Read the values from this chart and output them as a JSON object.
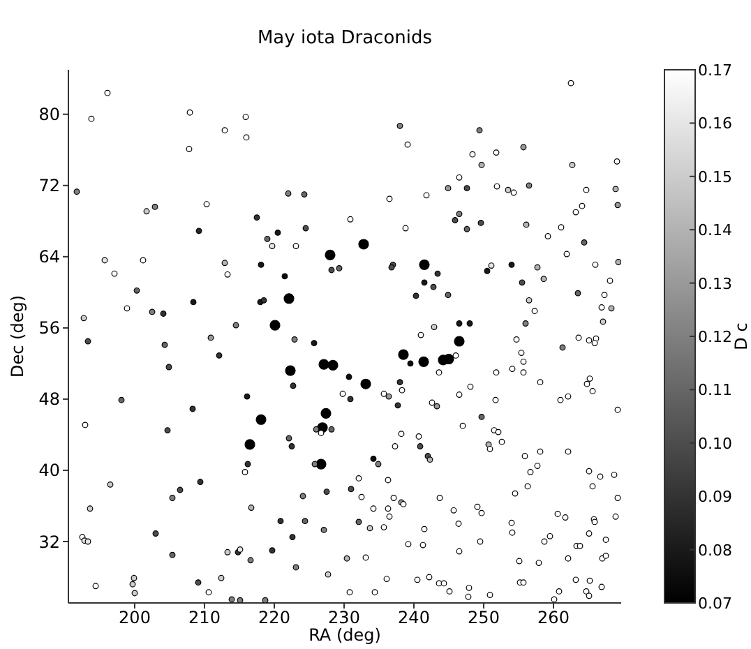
{
  "chart_data": {
    "type": "scatter",
    "title": "May iota Draconids",
    "xlabel": "RA (deg)",
    "ylabel": "Dec (deg)",
    "clabel": "D c",
    "xlim": [
      190.5,
      269.7
    ],
    "ylim": [
      25.1,
      85
    ],
    "xticks": [
      200,
      210,
      220,
      230,
      240,
      250,
      260
    ],
    "yticks": [
      32,
      40,
      48,
      56,
      64,
      72,
      80
    ],
    "clim": [
      0.07,
      0.17
    ],
    "cticks": [
      0.07,
      0.08,
      0.09,
      {
        "value": 0.1,
        "label": "0.10"
      },
      0.11,
      0.12,
      0.13,
      0.14,
      0.15,
      0.16,
      0.17
    ],
    "grid": false,
    "marker": "circle",
    "x": [
      196.1,
      193.8,
      207.9,
      215.9,
      212.9,
      216.0,
      207.8,
      191.7,
      201.7,
      202.9,
      210.3,
      217.5,
      209.2,
      222.0,
      224.3,
      230.9,
      219.0,
      220.5,
      224.5,
      219.7,
      223.1,
      228.0,
      232.8,
      228.2,
      229.3,
      195.7,
      197.1,
      201.2,
      212.9,
      213.3,
      218.1,
      221.5,
      200.3,
      198.9,
      202.5,
      204.1,
      208.4,
      218.0,
      218.5,
      222.1,
      220.1,
      192.7,
      193.3,
      210.9,
      214.5,
      222.9,
      225.7,
      212.1,
      204.3,
      204.9,
      222.3,
      227.1,
      228.4,
      230.7,
      233.1,
      222.7,
      230.9,
      229.8,
      216.1,
      198.1,
      208.3,
      218.1,
      227.4,
      226.9,
      226.0,
      226.7,
      228.2,
      204.7,
      192.9,
      222.1,
      222.5,
      216.5,
      216.2,
      215.8,
      226.7,
      225.8,
      234.2,
      196.5,
      209.4,
      206.5,
      205.4,
      193.6,
      216.7,
      224.1,
      227.5,
      231.0,
      232.1,
      232.5,
      220.9,
      224.4,
      232.1,
      233.7,
      234.2,
      227.1,
      203.0,
      222.6,
      192.5,
      192.8,
      193.3,
      214.8,
      215.1,
      213.3,
      219.7,
      205.4,
      216.6,
      230.4,
      233.1,
      223.1,
      227.7,
      199.9,
      199.7,
      200.0,
      194.4,
      209.1,
      212.4,
      210.6,
      213.9,
      215.1,
      218.7,
      230.8,
      234.4,
      238.0,
      239.1,
      249.4,
      255.7,
      248.4,
      251.8,
      262.5,
      249.7,
      262.7,
      269.1,
      246.5,
      244.9,
      247.6,
      241.8,
      251.9,
      253.5,
      254.3,
      256.5,
      264.7,
      268.9,
      269.2,
      264.1,
      263.2,
      236.5,
      246.5,
      245.9,
      247.6,
      249.6,
      238.8,
      256.1,
      259.2,
      261.1,
      264.4,
      261.9,
      269.3,
      266.0,
      268.1,
      237.0,
      236.8,
      241.5,
      243.4,
      241.5,
      242.8,
      240.3,
      244.9,
      251.1,
      250.5,
      254.0,
      257.7,
      255.5,
      258.6,
      256.5,
      257.3,
      263.5,
      267.3,
      266.9,
      268.3,
      267.1,
      242.9,
      246.5,
      248.0,
      256.0,
      241.0,
      246.5,
      254.7,
      261.3,
      263.6,
      265.1,
      266.1,
      265.9,
      255.4,
      238.5,
      239.5,
      241.4,
      244.2,
      245.0,
      255.7,
      255.7,
      254.1,
      258.1,
      251.8,
      243.6,
      246.0,
      238.3,
      248.1,
      246.5,
      235.7,
      236.4,
      238.0,
      237.7,
      242.6,
      243.3,
      251.7,
      261.0,
      262.1,
      264.8,
      265.2,
      265.6,
      269.2,
      249.7,
      247.0,
      238.2,
      240.7,
      240.9,
      237.3,
      242.0,
      242.3,
      234.9,
      251.5,
      252.1,
      252.6,
      250.7,
      250.9,
      255.9,
      258.1,
      262.1,
      256.7,
      257.7,
      256.3,
      254.5,
      265.1,
      266.7,
      268.7,
      265.6,
      269.2,
      236.3,
      236.3,
      236.5,
      237.1,
      238.2,
      238.5,
      243.7,
      245.7,
      249.1,
      249.7,
      246.4,
      254.0,
      254.1,
      260.6,
      261.7,
      265.8,
      265.9,
      268.9,
      235.7,
      241.5,
      258.7,
      259.5,
      265.1,
      267.5,
      249.5,
      239.2,
      241.3,
      246.5,
      263.3,
      263.8,
      262.1,
      257.9,
      255.1,
      267.0,
      267.5,
      236.1,
      240.5,
      242.2,
      243.6,
      244.3,
      245.1,
      247.9,
      247.8,
      250.9,
      255.2,
      255.7,
      260.1,
      260.8,
      263.2,
      265.2,
      264.7,
      265.1,
      266.9
    ],
    "values": [
      82.4,
      79.5,
      80.2,
      79.7,
      78.2,
      77.4,
      76.1,
      71.3,
      69.1,
      69.6,
      69.9,
      68.4,
      66.9,
      71.1,
      71.0,
      68.2,
      66.0,
      66.7,
      67.2,
      65.2,
      65.2,
      64.2,
      65.4,
      62.5,
      62.7,
      63.6,
      62.1,
      63.6,
      63.3,
      62.0,
      63.1,
      61.8,
      60.2,
      58.2,
      57.8,
      57.6,
      58.9,
      58.9,
      59.1,
      59.3,
      56.3,
      57.1,
      54.5,
      54.9,
      56.3,
      54.7,
      54.3,
      52.9,
      54.1,
      51.6,
      51.2,
      51.9,
      51.8,
      50.5,
      49.7,
      49.5,
      48.0,
      48.6,
      48.3,
      47.9,
      46.9,
      45.7,
      46.4,
      44.8,
      44.6,
      44.2,
      44.6,
      44.5,
      45.1,
      43.6,
      42.7,
      42.9,
      40.7,
      39.8,
      40.7,
      40.7,
      41.3,
      38.4,
      38.7,
      37.8,
      36.9,
      35.7,
      35.8,
      37.1,
      37.6,
      37.9,
      39.1,
      37.0,
      34.3,
      34.3,
      34.2,
      33.5,
      35.7,
      33.3,
      32.9,
      32.5,
      32.5,
      32.1,
      32.0,
      30.8,
      31.1,
      30.8,
      31.0,
      30.5,
      29.9,
      30.1,
      30.2,
      29.1,
      28.3,
      27.9,
      27.2,
      26.2,
      27.0,
      27.4,
      27.9,
      26.3,
      25.5,
      25.4,
      25.4,
      26.3,
      26.3,
      78.7,
      76.6,
      78.2,
      76.3,
      75.5,
      75.7,
      83.5,
      74.3,
      74.3,
      74.7,
      72.9,
      71.7,
      71.7,
      70.9,
      71.9,
      71.5,
      71.2,
      72.0,
      71.5,
      71.6,
      69.8,
      69.7,
      69.0,
      70.5,
      68.8,
      68.1,
      67.1,
      67.8,
      67.2,
      67.6,
      66.3,
      67.3,
      65.6,
      64.3,
      63.4,
      63.1,
      61.3,
      63.1,
      62.8,
      63.1,
      62.1,
      61.1,
      60.6,
      59.6,
      59.7,
      63.0,
      62.4,
      63.1,
      62.8,
      61.1,
      61.5,
      59.1,
      57.9,
      59.9,
      59.7,
      58.3,
      58.2,
      56.7,
      56.1,
      56.5,
      56.5,
      56.5,
      55.2,
      54.5,
      54.7,
      53.8,
      54.9,
      54.6,
      54.8,
      54.3,
      53.2,
      53.0,
      52.0,
      52.2,
      52.4,
      52.5,
      52.2,
      51.0,
      51.4,
      49.9,
      51.0,
      51.0,
      52.9,
      49.0,
      49.4,
      48.5,
      48.6,
      48.3,
      49.9,
      47.3,
      47.6,
      47.2,
      47.9,
      47.9,
      48.3,
      49.7,
      50.3,
      48.9,
      46.8,
      46.0,
      45.0,
      44.1,
      43.8,
      42.7,
      42.7,
      41.6,
      41.2,
      40.7,
      44.5,
      44.3,
      43.2,
      42.9,
      42.4,
      41.6,
      42.1,
      42.1,
      39.8,
      40.5,
      38.2,
      37.4,
      39.9,
      39.3,
      39.5,
      38.2,
      36.9,
      38.9,
      35.7,
      34.8,
      36.9,
      36.4,
      36.2,
      36.9,
      35.5,
      35.9,
      35.2,
      34.0,
      34.1,
      33.0,
      35.1,
      34.7,
      34.5,
      34.2,
      34.8,
      33.6,
      33.4,
      32.0,
      32.6,
      32.9,
      32.2,
      32.0,
      31.7,
      31.6,
      30.9,
      31.5,
      31.5,
      30.1,
      29.6,
      29.8,
      30.1,
      30.4,
      27.8,
      27.7,
      28.0,
      27.3,
      27.3,
      26.4,
      26.8,
      25.8,
      26.0,
      27.4,
      27.4,
      25.5,
      26.4,
      27.7,
      27.6,
      26.4,
      25.9,
      26.9
    ],
    "cvalues": [
      0.17,
      0.17,
      0.17,
      0.17,
      0.17,
      0.17,
      0.17,
      0.12,
      0.15,
      0.12,
      0.17,
      0.09,
      0.085,
      0.12,
      0.11,
      0.17,
      0.11,
      0.08,
      0.1,
      0.16,
      0.17,
      0.07,
      0.07,
      0.1,
      0.11,
      0.16,
      0.17,
      0.17,
      0.14,
      0.17,
      0.08,
      0.075,
      0.11,
      0.17,
      0.12,
      0.09,
      0.08,
      0.08,
      0.09,
      0.07,
      0.07,
      0.15,
      0.1,
      0.13,
      0.12,
      0.12,
      0.08,
      0.09,
      0.11,
      0.1,
      0.07,
      0.07,
      0.07,
      0.075,
      0.07,
      0.09,
      0.09,
      0.17,
      0.08,
      0.11,
      0.09,
      0.07,
      0.07,
      0.07,
      0.12,
      0.17,
      0.11,
      0.1,
      0.17,
      0.11,
      0.09,
      0.07,
      0.09,
      0.17,
      0.07,
      0.12,
      0.075,
      0.15,
      0.09,
      0.1,
      0.12,
      0.15,
      0.14,
      0.12,
      0.1,
      0.1,
      0.17,
      0.17,
      0.09,
      0.11,
      0.11,
      0.15,
      0.17,
      0.12,
      0.1,
      0.09,
      0.17,
      0.16,
      0.16,
      0.09,
      0.16,
      0.15,
      0.09,
      0.11,
      0.12,
      0.14,
      0.17,
      0.12,
      0.15,
      0.15,
      0.15,
      0.15,
      0.17,
      0.1,
      0.15,
      0.17,
      0.12,
      0.12,
      0.12,
      0.17,
      0.17,
      0.12,
      0.17,
      0.12,
      0.13,
      0.17,
      0.17,
      0.17,
      0.14,
      0.15,
      0.17,
      0.17,
      0.13,
      0.1,
      0.17,
      0.17,
      0.15,
      0.17,
      0.12,
      0.17,
      0.14,
      0.13,
      0.17,
      0.17,
      0.17,
      0.12,
      0.1,
      0.11,
      0.1,
      0.17,
      0.14,
      0.17,
      0.17,
      0.11,
      0.17,
      0.14,
      0.17,
      0.17,
      0.1,
      0.1,
      0.07,
      0.09,
      0.08,
      0.1,
      0.09,
      0.11,
      0.16,
      0.08,
      0.08,
      0.14,
      0.1,
      0.14,
      0.15,
      0.17,
      0.11,
      0.17,
      0.17,
      0.14,
      0.15,
      0.15,
      0.08,
      0.08,
      0.12,
      0.17,
      0.07,
      0.17,
      0.12,
      0.17,
      0.17,
      0.17,
      0.17,
      0.17,
      0.07,
      0.075,
      0.07,
      0.07,
      0.07,
      0.17,
      0.17,
      0.17,
      0.17,
      0.17,
      0.17,
      0.17,
      0.17,
      0.17,
      0.17,
      0.17,
      0.13,
      0.09,
      0.09,
      0.17,
      0.13,
      0.17,
      0.17,
      0.17,
      0.17,
      0.17,
      0.17,
      0.17,
      0.11,
      0.17,
      0.17,
      0.17,
      0.1,
      0.17,
      0.1,
      0.14,
      0.12,
      0.17,
      0.17,
      0.17,
      0.14,
      0.17,
      0.17,
      0.17,
      0.17,
      0.17,
      0.17,
      0.17,
      0.17,
      0.17,
      0.17,
      0.17,
      0.17,
      0.17,
      0.17,
      0.17,
      0.17,
      0.17,
      0.13,
      0.17,
      0.17,
      0.17,
      0.17,
      0.17,
      0.17,
      0.17,
      0.17,
      0.17,
      0.17,
      0.17,
      0.17,
      0.17,
      0.17,
      0.17,
      0.17,
      0.17,
      0.17,
      0.17,
      0.17,
      0.17,
      0.17,
      0.17,
      0.17,
      0.17,
      0.17,
      0.17,
      0.17,
      0.17,
      0.17,
      0.17,
      0.17,
      0.17,
      0.17,
      0.17,
      0.17,
      0.17,
      0.17,
      0.17,
      0.17,
      0.17,
      0.17,
      0.17,
      0.17,
      0.17,
      0.17,
      0.17,
      0.17
    ],
    "sizes": [
      0.3,
      0.3,
      0.3,
      0.3,
      0.3,
      0.3,
      0.3,
      0.3,
      0.3,
      0.3,
      0.3,
      0.3,
      0.3,
      0.3,
      0.3,
      0.3,
      0.3,
      0.3,
      0.3,
      0.3,
      0.3,
      1,
      1,
      0.3,
      0.3,
      0.3,
      0.3,
      0.3,
      0.3,
      0.3,
      0.3,
      0.3,
      0.3,
      0.3,
      0.3,
      0.3,
      0.3,
      0.3,
      0.3,
      1,
      1,
      0.3,
      0.3,
      0.3,
      0.3,
      0.3,
      0.3,
      0.3,
      0.3,
      0.3,
      1,
      1,
      1,
      0.3,
      1,
      0.3,
      0.3,
      0.3,
      0.3,
      0.3,
      0.3,
      1,
      1,
      1,
      0.3,
      0.3,
      0.3,
      0.3,
      0.3,
      0.3,
      0.3,
      1,
      0.3,
      0.3,
      1,
      0.3,
      0.3,
      0.3,
      0.3,
      0.3,
      0.3,
      0.3,
      0.3,
      0.3,
      0.3,
      0.3,
      0.3,
      0.3,
      0.3,
      0.3,
      0.3,
      0.3,
      0.3,
      0.3,
      0.3,
      0.3,
      0.3,
      0.3,
      0.3,
      0.3,
      0.3,
      0.3,
      0.3,
      0.3,
      0.3,
      0.3,
      0.3,
      0.3,
      0.3,
      0.3,
      0.3,
      0.3,
      0.3,
      0.3,
      0.3,
      0.3,
      0.3,
      0.3,
      0.3,
      0.3,
      0.3,
      0.3,
      0.3,
      0.3,
      0.3,
      0.3,
      0.3,
      0.3,
      0.3,
      0.3,
      0.3,
      0.3,
      0.3,
      0.3,
      0.3,
      0.3,
      0.3,
      0.3,
      0.3,
      0.3,
      0.3,
      0.3,
      0.3,
      0.3,
      0.3,
      0.3,
      0.3,
      0.3,
      0.3,
      0.3,
      0.3,
      0.3,
      0.3,
      0.3,
      0.3,
      0.3,
      0.3,
      0.3,
      0.3,
      0.3,
      1,
      0.3,
      0.3,
      0.3,
      0.3,
      0.3,
      0.3,
      0.3,
      0.3,
      0.3,
      0.3,
      0.3,
      0.3,
      0.3,
      0.3,
      0.3,
      0.3,
      0.3,
      0.3,
      0.3,
      0.3,
      0.3,
      0.3,
      0.3,
      1,
      0.3,
      0.3,
      0.3,
      0.3,
      0.3,
      0.3,
      0.3,
      1,
      0.3,
      1,
      1,
      1,
      0.3,
      0.3,
      0.3,
      0.3,
      0.3,
      0.3,
      0.3,
      0.3,
      0.3,
      0.3,
      0.3,
      0.3,
      0.3,
      0.3,
      0.3,
      0.3,
      0.3,
      0.3,
      0.3,
      0.3,
      0.3,
      0.3,
      0.3,
      0.3,
      0.3,
      0.3,
      0.3,
      0.3,
      0.3,
      0.3,
      0.3,
      0.3,
      0.3,
      0.3,
      0.3,
      0.3,
      0.3,
      0.3,
      0.3,
      0.3,
      0.3,
      0.3,
      0.3,
      0.3,
      0.3,
      0.3,
      0.3,
      0.3,
      0.3,
      0.3,
      0.3,
      0.3,
      0.3,
      0.3,
      0.3,
      0.3,
      0.3,
      0.3,
      0.3,
      0.3,
      0.3,
      0.3,
      0.3,
      0.3,
      0.3,
      0.3,
      0.3,
      0.3,
      0.3,
      0.3,
      0.3,
      0.3,
      0.3,
      0.3,
      0.3,
      0.3,
      0.3,
      0.3,
      0.3,
      0.3,
      0.3,
      0.3,
      0.3,
      0.3,
      0.3,
      0.3,
      0.3,
      0.3,
      0.3,
      0.3,
      0.3,
      0.3,
      0.3,
      0.3,
      0.3,
      0.3,
      0.3,
      0.3,
      0.3,
      0.3,
      0.3,
      0.3
    ]
  }
}
